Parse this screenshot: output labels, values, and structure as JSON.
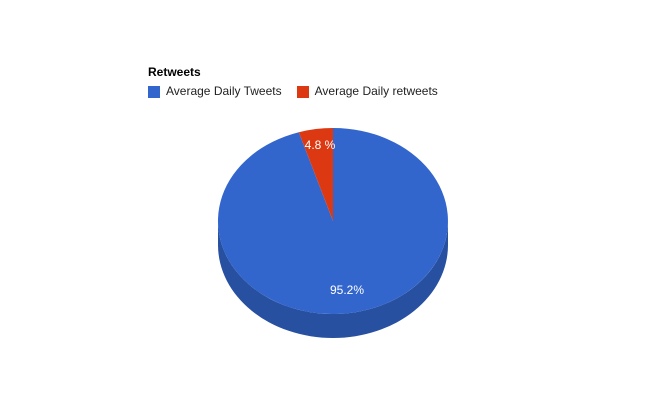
{
  "background": "#FFFFFF",
  "title": "Retweets",
  "legend": {
    "items": [
      {
        "label": "Average Daily Tweets",
        "color": "#3366CC"
      },
      {
        "label": "Average Daily retweets",
        "color": "#DC3912"
      }
    ]
  },
  "chart_data": {
    "type": "pie",
    "style": "3d",
    "title": "Retweets",
    "categories": [
      "Average Daily Tweets",
      "Average Daily retweets"
    ],
    "values": [
      95.2,
      4.8
    ],
    "slice_labels": [
      "95.2%",
      "4.8 %"
    ],
    "colors": [
      "#3366CC",
      "#DC3912"
    ],
    "side_color": "#2850A0",
    "label_color": "#FFFFFF",
    "title_color": "#000000",
    "legend_text_color": "#222222",
    "legend_position": "top-left",
    "start_angle_deg": -90,
    "direction": "clockwise",
    "background": "#FFFFFF"
  }
}
